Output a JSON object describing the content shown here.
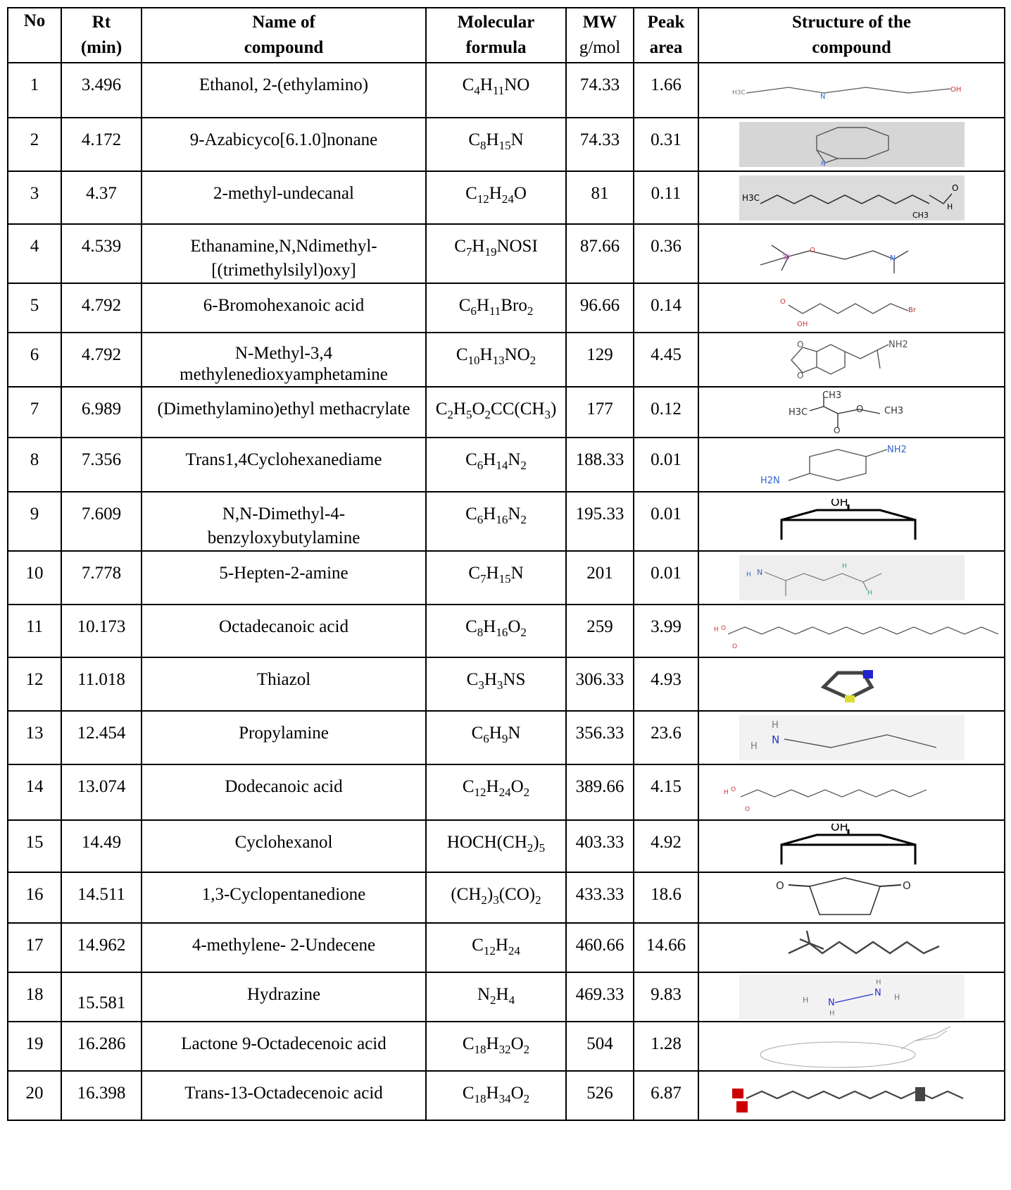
{
  "headers": {
    "no": "No",
    "rt_line1": "Rt",
    "rt_line2": "(min)",
    "name_line1": "Name of",
    "name_line2": "compound",
    "formula_line1": "Molecular",
    "formula_line2": "formula",
    "mw_line1": "MW",
    "mw_line2": "g/mol",
    "peak_line1": "Peak",
    "peak_line2": "area",
    "structure_line1": "Structure of the",
    "structure_line2": "compound"
  },
  "rows": [
    {
      "no": "1",
      "rt": "3.496",
      "name": "Ethanol, 2-(ethylamino)",
      "formula": "C4H11NO",
      "mw": "74.33",
      "peak": "1.66",
      "structure_icon": "ethanolamine-structure"
    },
    {
      "no": "2",
      "rt": "4.172",
      "name": "9-Azabicyco[6.1.0]nonane",
      "formula": "C8H15N",
      "mw": "74.33",
      "peak": "0.31",
      "structure_icon": "azabicyclononane-structure"
    },
    {
      "no": "3",
      "rt": "4.37",
      "name": "2-methyl-undecanal",
      "formula": "C12H24O",
      "mw": "81",
      "peak": "0.11",
      "structure_icon": "methylundecanal-structure"
    },
    {
      "no": "4",
      "rt": "4.539",
      "name": "Ethanamine,N,Ndimethyl-",
      "name2": "[(trimethylsilyl)oxy]",
      "formula": "C7H19NOSI",
      "mw": "87.66",
      "peak": "0.36",
      "structure_icon": "silyloxy-ethanamine-structure"
    },
    {
      "no": "5",
      "rt": "4.792",
      "name": "6-Bromohexanoic acid",
      "formula": "C6H11Bro2",
      "mw": "96.66",
      "peak": "0.14",
      "structure_icon": "bromohexanoic-acid-structure"
    },
    {
      "no": "6",
      "rt": "4.792",
      "name": "N-Methyl-3,4",
      "name2": "methylenedioxyamphetamine",
      "formula": "C10H13NO2",
      "mw": "129",
      "peak": "4.45",
      "structure_icon": "mda-structure"
    },
    {
      "no": "7",
      "rt": "6.989",
      "name": "(Dimethylamino)ethyl methacrylate",
      "formula": "C2H5O2CC(CH3)",
      "mw": "177",
      "peak": "0.12",
      "structure_icon": "methacrylate-structure"
    },
    {
      "no": "8",
      "rt": "7.356",
      "name": "Trans1,4Cyclohexanediame",
      "formula": "C6H14N2",
      "mw": "188.33",
      "peak": "0.01",
      "structure_icon": "cyclohexanediamine-structure"
    },
    {
      "no": "9",
      "rt": "7.609",
      "name": "N,N-Dimethyl-4-",
      "name2": "benzyloxybutylamine",
      "formula": "C6H16N2",
      "mw": "195.33",
      "peak": "0.01",
      "structure_icon": "cyclohexanol-structure"
    },
    {
      "no": "10",
      "rt": "7.778",
      "name": "5-Hepten-2-amine",
      "formula": "C7H15N",
      "mw": "201",
      "peak": "0.01",
      "structure_icon": "heptenamine-structure"
    },
    {
      "no": "11",
      "rt": "10.173",
      "name": "Octadecanoic acid",
      "formula": "C8H16O2",
      "mw": "259",
      "peak": "3.99",
      "structure_icon": "octadecanoic-acid-structure"
    },
    {
      "no": "12",
      "rt": "11.018",
      "name": "Thiazol",
      "formula": "C3H3NS",
      "mw": "306.33",
      "peak": "4.93",
      "structure_icon": "thiazole-structure"
    },
    {
      "no": "13",
      "rt": "12.454",
      "name": "Propylamine",
      "formula": "C6H9N",
      "mw": "356.33",
      "peak": "23.6",
      "structure_icon": "propylamine-structure"
    },
    {
      "no": "14",
      "rt": "13.074",
      "name": "Dodecanoic acid",
      "formula": "C12H24O2",
      "mw": "389.66",
      "peak": "4.15",
      "structure_icon": "dodecanoic-acid-structure"
    },
    {
      "no": "15",
      "rt": "14.49",
      "name": "Cyclohexanol",
      "formula": "HOCH(CH2)5",
      "mw": "403.33",
      "peak": "4.92",
      "structure_icon": "cyclohexanol-structure"
    },
    {
      "no": "16",
      "rt": "14.511",
      "name": "1,3-Cyclopentanedione",
      "formula": "(CH2)3(CO)2",
      "mw": "433.33",
      "peak": "18.6",
      "structure_icon": "cyclopentanedione-structure"
    },
    {
      "no": "17",
      "rt": "14.962",
      "name": "4-methylene- 2-Undecene",
      "formula": "C12H24",
      "mw": "460.66",
      "peak": "14.66",
      "structure_icon": "methyleneundecene-structure"
    },
    {
      "no": "18",
      "rt": "15.581",
      "name": "Hydrazine",
      "formula": "N2H4",
      "mw": "469.33",
      "peak": "9.83",
      "structure_icon": "hydrazine-structure"
    },
    {
      "no": "19",
      "rt": "16.286",
      "name": "Lactone 9-Octadecenoic acid",
      "formula": "C18H32O2",
      "mw": "504",
      "peak": "1.28",
      "structure_icon": "lactone-structure"
    },
    {
      "no": "20",
      "rt": "16.398",
      "name": "Trans-13-Octadecenoic acid",
      "formula": "C18H34O2",
      "mw": "526",
      "peak": "6.87",
      "structure_icon": "octadecenoic-acid-structure"
    }
  ],
  "structure_labels": {
    "oh": "OH",
    "nh2": "NH2",
    "h2n": "H2N",
    "h3c": "H3C",
    "ch3": "CH3",
    "h": "H",
    "n": "N",
    "o": "O",
    "si": "Si",
    "br": "Br"
  }
}
